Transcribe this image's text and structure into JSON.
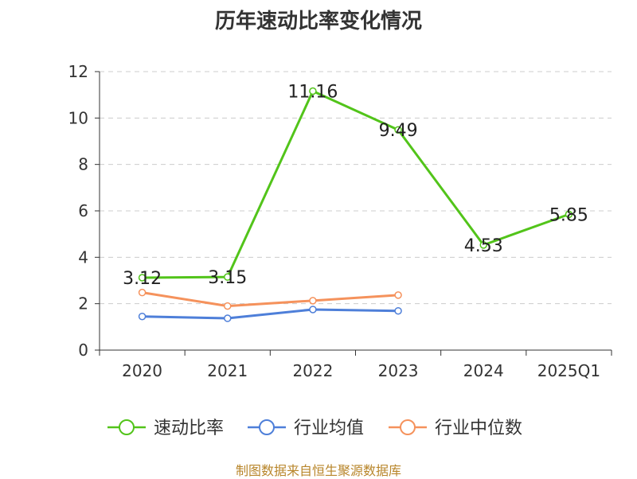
{
  "chart_data": {
    "type": "line",
    "title": "历年速动比率变化情况",
    "categories": [
      "2020",
      "2021",
      "2022",
      "2023",
      "2024",
      "2025Q1"
    ],
    "ylim": [
      0,
      12
    ],
    "yticks": [
      0,
      2,
      4,
      6,
      8,
      10,
      12
    ],
    "grid": true,
    "legend_position": "bottom",
    "series": [
      {
        "name": "速动比率",
        "color": "#52c41a",
        "values": [
          3.12,
          3.15,
          11.16,
          9.49,
          4.53,
          5.85
        ],
        "labels": [
          "3.12",
          "3.15",
          "11.16",
          "9.49",
          "4.53",
          "5.85"
        ]
      },
      {
        "name": "行业均值",
        "color": "#4e7fd9",
        "values": [
          1.45,
          1.37,
          1.75,
          1.69,
          null,
          null
        ]
      },
      {
        "name": "行业中位数",
        "color": "#f5925c",
        "values": [
          2.48,
          1.9,
          2.13,
          2.37,
          null,
          null
        ]
      }
    ]
  },
  "source": "制图数据来自恒生聚源数据库"
}
